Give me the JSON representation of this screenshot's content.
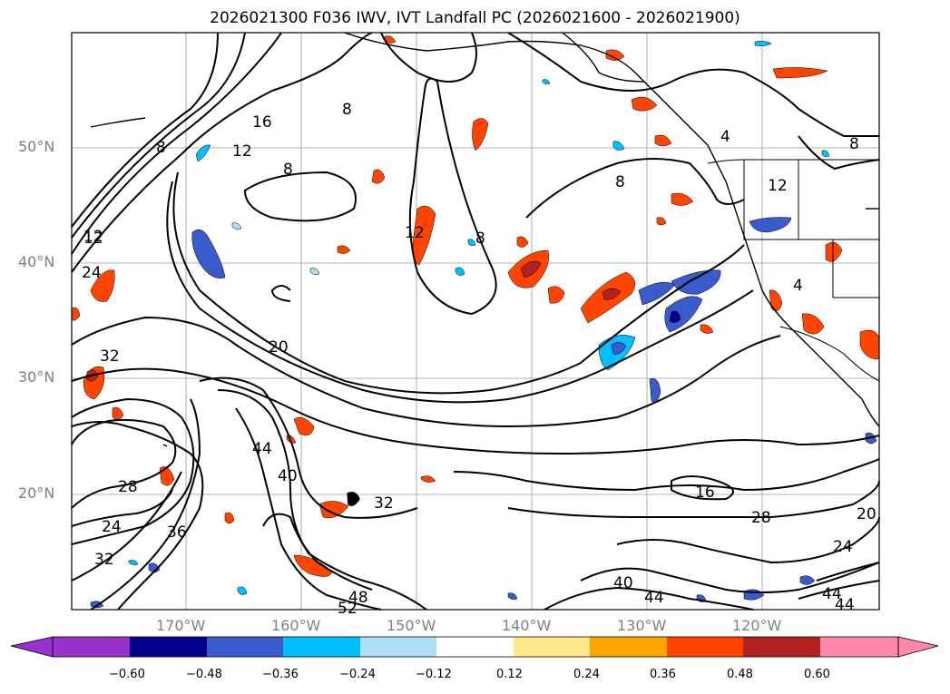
{
  "title": "2026021300 F036 IWV, IVT Landfall PC (2026021600 - 2026021900)",
  "lat_labels": [
    "50°N",
    "40°N",
    "30°N",
    "20°N"
  ],
  "lon_labels": [
    "170°W",
    "160°W",
    "150°W",
    "140°W",
    "130°W",
    "120°W"
  ],
  "iwv_contour_labels": [
    "8",
    "16",
    "12",
    "8",
    "8",
    "12",
    "8",
    "8",
    "12",
    "4",
    "8",
    "12",
    "4",
    "12",
    "24",
    "32",
    "20",
    "28",
    "24",
    "32",
    "36",
    "44",
    "40",
    "32",
    "16",
    "28",
    "20",
    "24",
    "40",
    "44",
    "44",
    "48",
    "52",
    "44"
  ],
  "colorbar": {
    "ticks": [
      "−0.60",
      "−0.48",
      "−0.36",
      "−0.24",
      "−0.12",
      "0.12",
      "0.24",
      "0.36",
      "0.48",
      "0.60"
    ],
    "colors": [
      "#9932CC",
      "#00008B",
      "#3A5BCC",
      "#00BFFF",
      "#ADDFF7",
      "#FFFFFF",
      "#FFE88A",
      "#FFA500",
      "#FF4500",
      "#B22222",
      "#FF88AA"
    ]
  }
}
